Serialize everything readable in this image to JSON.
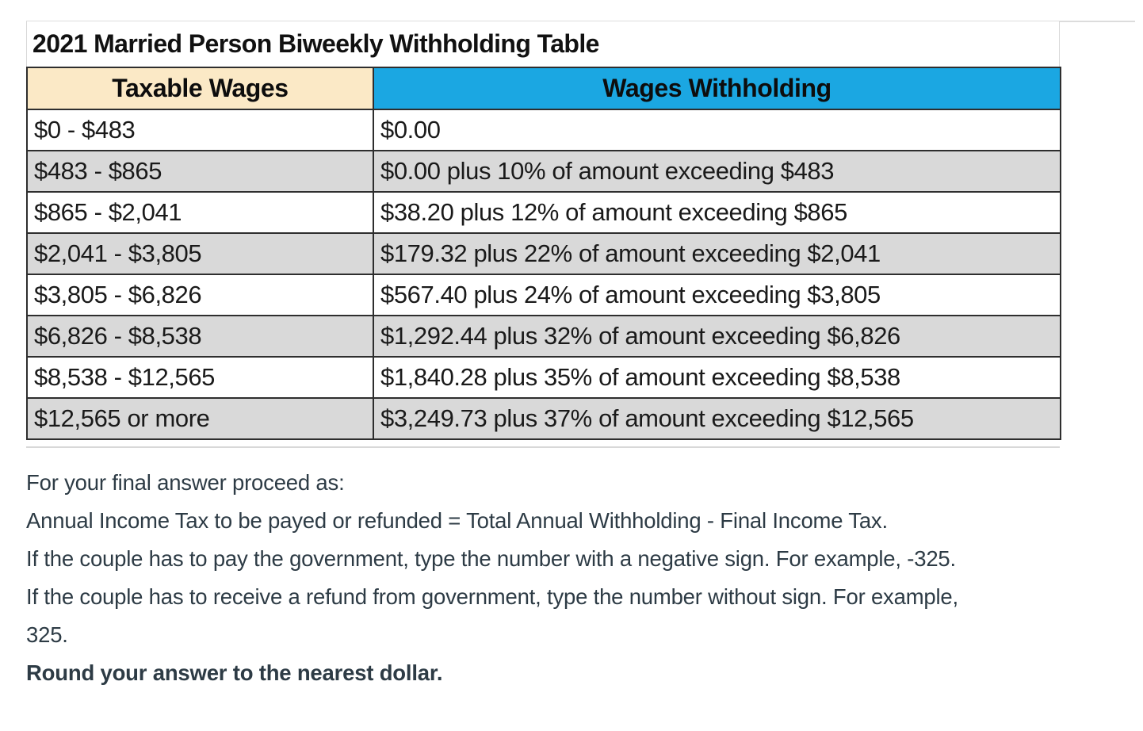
{
  "table": {
    "title": "2021 Married Person Biweekly Withholding Table",
    "columns": [
      {
        "label": "Taxable Wages",
        "header_bg": "#FBE9C6"
      },
      {
        "label": "Wages Withholding",
        "header_bg": "#1BA7E2"
      }
    ],
    "rows": [
      {
        "taxable_wages": "$0 - $483",
        "wages_withholding": "$0.00"
      },
      {
        "taxable_wages": "$483 - $865",
        "wages_withholding": "$0.00 plus 10% of amount exceeding $483"
      },
      {
        "taxable_wages": "$865 - $2,041",
        "wages_withholding": "$38.20 plus 12% of amount exceeding $865"
      },
      {
        "taxable_wages": "$2,041 - $3,805",
        "wages_withholding": "$179.32 plus 22% of amount exceeding $2,041"
      },
      {
        "taxable_wages": "$3,805 - $6,826",
        "wages_withholding": "$567.40 plus 24% of amount exceeding $3,805"
      },
      {
        "taxable_wages": "$6,826 - $8,538",
        "wages_withholding": "$1,292.44 plus 32% of amount exceeding $6,826"
      },
      {
        "taxable_wages": "$8,538 - $12,565",
        "wages_withholding": "$1,840.28 plus 35% of amount exceeding $8,538"
      },
      {
        "taxable_wages": "$12,565 or more",
        "wages_withholding": "$3,249.73 plus 37% of amount exceeding $12,565"
      }
    ],
    "colors": {
      "row_bg": "#FFFFFF",
      "row_alt_bg": "#D9D9D9",
      "border": "#2E2E2E",
      "title_text": "#111111"
    }
  },
  "instructions": {
    "text_color": "#2D3B45",
    "lines": [
      {
        "text": "For your final answer proceed as:",
        "bold": false
      },
      {
        "text": "Annual Income Tax to be payed or refunded = Total Annual Withholding - Final Income Tax.",
        "bold": false
      },
      {
        "text": "If the couple has to pay the government, type the number with a negative sign. For example, -325.",
        "bold": false
      },
      {
        "text": "If the couple has to receive a refund from government, type the number without sign. For example,",
        "bold": false
      },
      {
        "text": "325.",
        "bold": false
      },
      {
        "text": "Round your answer to the nearest dollar.",
        "bold": true
      }
    ]
  }
}
